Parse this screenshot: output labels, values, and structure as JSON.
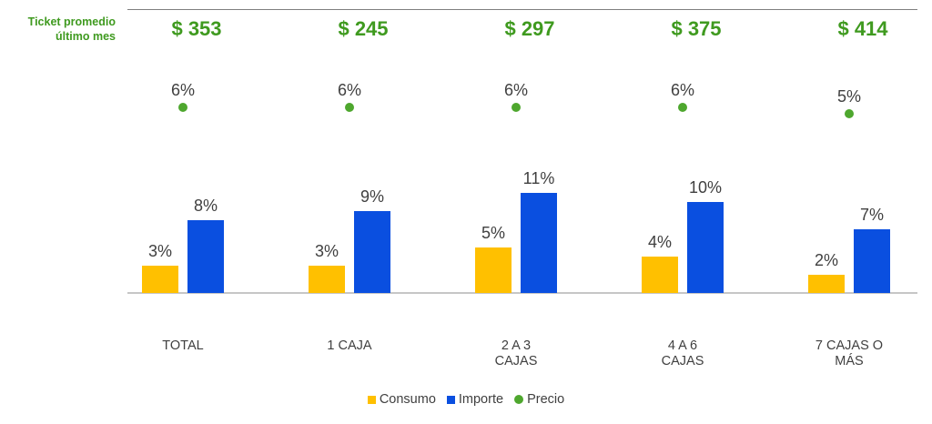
{
  "header": {
    "ticket_label_line1": "Ticket promedio",
    "ticket_label_line2": "último mes"
  },
  "colors": {
    "consumo": "#ffc000",
    "importe": "#0a4fe0",
    "precio": "#4ea72e",
    "ticket_text": "#3f9a1f",
    "label_text": "#404040"
  },
  "chart_data": {
    "type": "bar",
    "categories": [
      [
        "TOTAL"
      ],
      [
        "1 CAJA"
      ],
      [
        "2 A 3",
        "CAJAS"
      ],
      [
        "4 A 6",
        "CAJAS"
      ],
      [
        "7 CAJAS O",
        "MÁS"
      ]
    ],
    "ticket_promedio": [
      "$ 353",
      "$ 245",
      "$ 297",
      "$ 375",
      "$ 414"
    ],
    "series": [
      {
        "name": "Consumo",
        "kind": "bar",
        "values": [
          3,
          3,
          5,
          4,
          2
        ],
        "labels": [
          "3%",
          "3%",
          "5%",
          "4%",
          "2%"
        ]
      },
      {
        "name": "Importe",
        "kind": "bar",
        "values": [
          8,
          9,
          11,
          10,
          7
        ],
        "labels": [
          "8%",
          "9%",
          "11%",
          "10%",
          "7%"
        ]
      },
      {
        "name": "Precio",
        "kind": "dot",
        "values": [
          6,
          6,
          6,
          6,
          5
        ],
        "labels": [
          "6%",
          "6%",
          "6%",
          "6%",
          "5%"
        ]
      }
    ],
    "legend_position": "bottom",
    "grid": false
  }
}
